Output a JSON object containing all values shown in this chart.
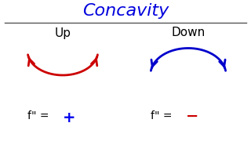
{
  "title": "Concavity",
  "title_color": "#0000dd",
  "title_fontsize": 16,
  "label_up": "Up",
  "label_down": "Down",
  "label_fontsize": 11,
  "label_color": "black",
  "concave_up_color": "#cc0000",
  "concave_down_color": "#0000cc",
  "formula_color": "black",
  "plus_color": "#0000ee",
  "minus_color": "#cc0000",
  "formula_fontsize": 10,
  "background_color": "#ffffff",
  "line_color": "#555555"
}
